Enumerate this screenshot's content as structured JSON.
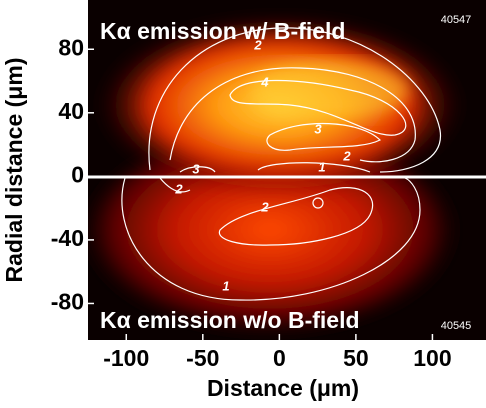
{
  "chart_data": {
    "type": "heatmap",
    "x_label": "Distance (μm)",
    "y_label": "Radial distance (μm)",
    "xlim": [
      -125,
      135
    ],
    "xticks": [
      -100,
      -50,
      0,
      50,
      100
    ],
    "ylim": [
      -103,
      111
    ],
    "yticks": [
      80,
      40,
      0,
      -40,
      -80
    ],
    "panels": [
      {
        "label": "Kα emission w/ B-field",
        "shot": "40547"
      },
      {
        "label": "Kα emission w/o B-field",
        "shot": "40545"
      }
    ],
    "contour_labels": [
      2,
      4,
      3,
      2,
      1,
      3,
      2,
      2,
      1
    ]
  }
}
